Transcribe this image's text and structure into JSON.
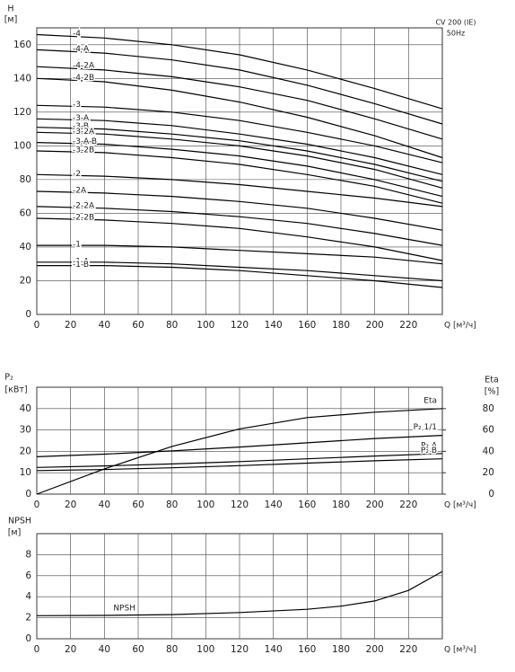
{
  "chart_data": [
    {
      "type": "line",
      "ylabel": [
        "H",
        "[м]"
      ],
      "xlabel": "Q [м³/ч]",
      "annotations": [
        "CV 200 (IE)",
        "50Hz"
      ],
      "xlim": [
        0,
        240
      ],
      "xticks": [
        0,
        20,
        40,
        60,
        80,
        100,
        120,
        140,
        160,
        180,
        200,
        220
      ],
      "ylim": [
        0,
        170
      ],
      "yticks": [
        0,
        20,
        40,
        60,
        80,
        100,
        120,
        140,
        160
      ],
      "grid": true,
      "x": [
        0,
        40,
        80,
        120,
        160,
        200,
        240
      ],
      "series": [
        {
          "name": "-4",
          "color": "#000000",
          "values": [
            166,
            164,
            160,
            154,
            145,
            134,
            122
          ]
        },
        {
          "name": "-4-A",
          "color": "#000000",
          "values": [
            157,
            155,
            151,
            145,
            136,
            125,
            113
          ]
        },
        {
          "name": "-4-2A",
          "color": "#000000",
          "values": [
            147,
            145,
            141,
            135,
            127,
            116,
            104
          ]
        },
        {
          "name": "-4-2B",
          "color": "#000000",
          "values": [
            140,
            138,
            133,
            126,
            117,
            106,
            93
          ]
        },
        {
          "name": "-3",
          "color": "#000000",
          "values": [
            124,
            123,
            120,
            115,
            108,
            100,
            90
          ]
        },
        {
          "name": "-3-A",
          "color": "#000000",
          "values": [
            116,
            115,
            112,
            107,
            101,
            93,
            83
          ]
        },
        {
          "name": "-3-B",
          "color": "#000000",
          "values": [
            111,
            110,
            107,
            103,
            97,
            89,
            79
          ]
        },
        {
          "name": "-3-2A",
          "color": "#000000",
          "values": [
            108,
            107,
            104,
            100,
            94,
            86,
            75
          ]
        },
        {
          "name": "-3-A-B",
          "color": "#000000",
          "values": [
            102,
            101,
            98,
            94,
            88,
            80,
            70
          ]
        },
        {
          "name": "-3-2B",
          "color": "#000000",
          "values": [
            97,
            96,
            93,
            89,
            83,
            76,
            66
          ]
        },
        {
          "name": "-2",
          "color": "#000000",
          "values": [
            83,
            82,
            80,
            77,
            73,
            69,
            64
          ]
        },
        {
          "name": "-2A",
          "color": "#000000",
          "values": [
            73,
            72,
            70,
            67,
            63,
            57,
            50
          ]
        },
        {
          "name": "-2-2A",
          "color": "#000000",
          "values": [
            64,
            63,
            61,
            58,
            54,
            48,
            41
          ]
        },
        {
          "name": "-2-2B",
          "color": "#000000",
          "values": [
            57,
            56,
            54,
            51,
            46,
            40,
            32
          ]
        },
        {
          "name": "-1",
          "color": "#000000",
          "values": [
            41,
            41,
            40,
            38,
            36,
            34,
            30
          ]
        },
        {
          "name": "-1-A",
          "color": "#000000",
          "values": [
            31,
            31,
            30,
            28,
            26,
            23,
            20
          ]
        },
        {
          "name": "-1-B",
          "color": "#000000",
          "values": [
            29,
            29,
            28,
            26,
            23,
            20,
            16
          ]
        }
      ]
    },
    {
      "type": "line",
      "ylabel": [
        "P₂",
        "[кВт]"
      ],
      "y2label": [
        "Eta",
        "[%]"
      ],
      "xlabel": "Q [м³/ч]",
      "xlim": [
        0,
        240
      ],
      "xticks": [
        0,
        20,
        40,
        60,
        80,
        100,
        120,
        140,
        160,
        180,
        200,
        220
      ],
      "ylim": [
        0,
        50
      ],
      "yticks": [
        0,
        10,
        20,
        30,
        40
      ],
      "y2lim": [
        0,
        100
      ],
      "y2ticks": [
        0,
        20,
        40,
        60,
        80
      ],
      "grid": true,
      "x": [
        0,
        40,
        80,
        120,
        160,
        200,
        240
      ],
      "series": [
        {
          "name": "Eta",
          "color": "#000000",
          "axis": "y2",
          "values": [
            0,
            23.6,
            44.6,
            61,
            71.6,
            76.6,
            80
          ]
        },
        {
          "name": "P₂ 1/1",
          "color": "#000000",
          "values": [
            17.5,
            18.7,
            20.2,
            22,
            24,
            26,
            27.5
          ]
        },
        {
          "name": "P₂ A",
          "color": "#000000",
          "values": [
            12.5,
            13.2,
            14.1,
            15.2,
            16.5,
            17.8,
            19
          ]
        },
        {
          "name": "P₂ B",
          "color": "#000000",
          "values": [
            11,
            11.5,
            12.3,
            13.3,
            14.5,
            15.6,
            16.5
          ]
        }
      ]
    },
    {
      "type": "line",
      "ylabel": [
        "NPSH",
        "[м]"
      ],
      "xlabel": "Q [м³/ч]",
      "xlim": [
        0,
        240
      ],
      "xticks": [
        0,
        20,
        40,
        60,
        80,
        100,
        120,
        140,
        160,
        180,
        200,
        220
      ],
      "ylim": [
        0,
        10
      ],
      "yticks": [
        0,
        2,
        4,
        6,
        8
      ],
      "grid": true,
      "x": [
        0,
        40,
        80,
        120,
        160,
        180,
        200,
        220,
        240
      ],
      "series": [
        {
          "name": "NPSH",
          "color": "#000000",
          "values": [
            2.2,
            2.22,
            2.3,
            2.5,
            2.8,
            3.1,
            3.6,
            4.6,
            6.4
          ]
        }
      ]
    }
  ]
}
